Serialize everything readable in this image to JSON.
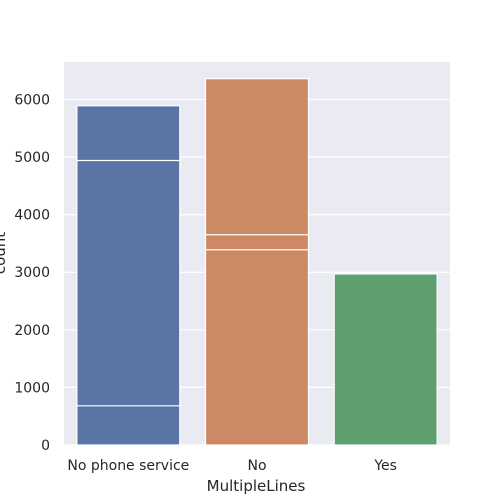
{
  "chart_data": {
    "type": "bar",
    "xlabel": "MultipleLines",
    "ylabel": "count",
    "categories": [
      "No phone service",
      "No",
      "Yes"
    ],
    "ylim": [
      0,
      6650
    ],
    "yticks": [
      0,
      1000,
      2000,
      3000,
      4000,
      5000,
      6000
    ],
    "grid": true,
    "bars": [
      {
        "category": "No phone service",
        "value": 5890,
        "inner_lines": [
          4940,
          680
        ],
        "color": "#5875a4"
      },
      {
        "category": "No",
        "value": 6360,
        "inner_lines": [
          3650,
          3390
        ],
        "color": "#cc8963"
      },
      {
        "category": "Yes",
        "value": 2970,
        "inner_lines": [],
        "color": "#5f9e6e"
      }
    ],
    "background_color": "#eaeaf2"
  }
}
